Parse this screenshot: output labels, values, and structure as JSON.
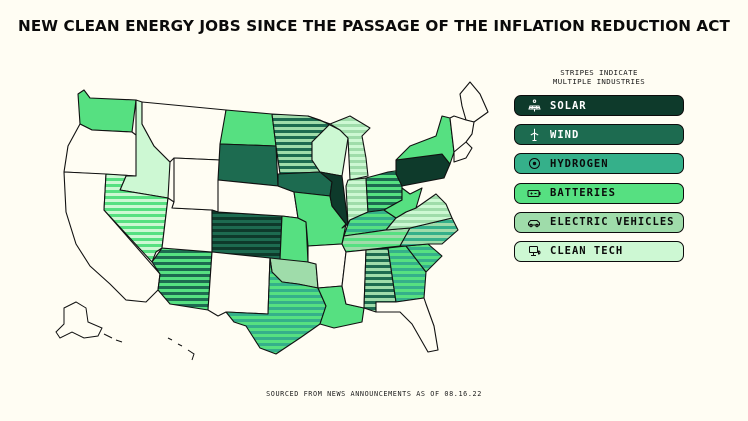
{
  "title": "NEW CLEAN ENERGY JOBS SINCE THE PASSAGE OF THE INFLATION REDUCTION ACT",
  "note_line1": "STRIPES INDICATE",
  "note_line2": "MULTIPLE INDUSTRIES",
  "source": "SOURCED FROM NEWS ANNOUNCEMENTS AS OF 08.16.22",
  "colors": {
    "solar": "#0e3a2b",
    "wind": "#1d6b50",
    "hydrogen": "#35b08a",
    "batteries": "#56e081",
    "ev": "#9fdcaa",
    "cleantech": "#cdf8d3",
    "none": "#fffdf3",
    "outline": "#111111"
  },
  "legend": [
    {
      "key": "solar",
      "label": "SOLAR",
      "icon": "solar-panel-icon"
    },
    {
      "key": "wind",
      "label": "WIND",
      "icon": "wind-turbine-icon"
    },
    {
      "key": "hydrogen",
      "label": "HYDROGEN",
      "icon": "hydrogen-icon"
    },
    {
      "key": "batteries",
      "label": "BATTERIES",
      "icon": "battery-icon"
    },
    {
      "key": "ev",
      "label": "ELECTRIC VEHICLES",
      "icon": "car-icon"
    },
    {
      "key": "cleantech",
      "label": "CLEAN TECH",
      "icon": "clean-tech-icon"
    }
  ],
  "states": {
    "WA": [
      "batteries"
    ],
    "OR": [],
    "CA": [],
    "ID": [
      "cleantech"
    ],
    "NV": [
      "batteries",
      "cleantech"
    ],
    "AZ": [
      "wind",
      "batteries"
    ],
    "UT": [],
    "MT": [],
    "WY": [],
    "CO": [
      "wind",
      "solar"
    ],
    "NM": [],
    "ND": [
      "batteries"
    ],
    "SD": [
      "wind"
    ],
    "NE": [],
    "KS": [
      "batteries"
    ],
    "OK": [
      "ev"
    ],
    "TX": [
      "batteries",
      "hydrogen"
    ],
    "MN": [
      "wind",
      "ev"
    ],
    "IA": [
      "wind"
    ],
    "MO": [
      "batteries"
    ],
    "AR": [],
    "LA": [
      "batteries"
    ],
    "WI": [
      "cleantech"
    ],
    "IL": [
      "solar"
    ],
    "MI": [
      "ev",
      "cleantech"
    ],
    "IN": [
      "ev",
      "cleantech"
    ],
    "OH": [
      "wind",
      "batteries"
    ],
    "KY": [
      "batteries",
      "hydrogen"
    ],
    "TN": [
      "batteries",
      "ev"
    ],
    "MS": [],
    "AL": [
      "ev",
      "wind"
    ],
    "GA": [
      "hydrogen",
      "batteries"
    ],
    "FL": [],
    "SC": [
      "batteries",
      "hydrogen"
    ],
    "NC": [
      "hydrogen",
      "ev"
    ],
    "VA": [
      "ev",
      "cleantech"
    ],
    "WV": [
      "batteries"
    ],
    "PA": [
      "solar"
    ],
    "NY": [
      "batteries"
    ],
    "ME": [],
    "NE_STATES": []
  }
}
